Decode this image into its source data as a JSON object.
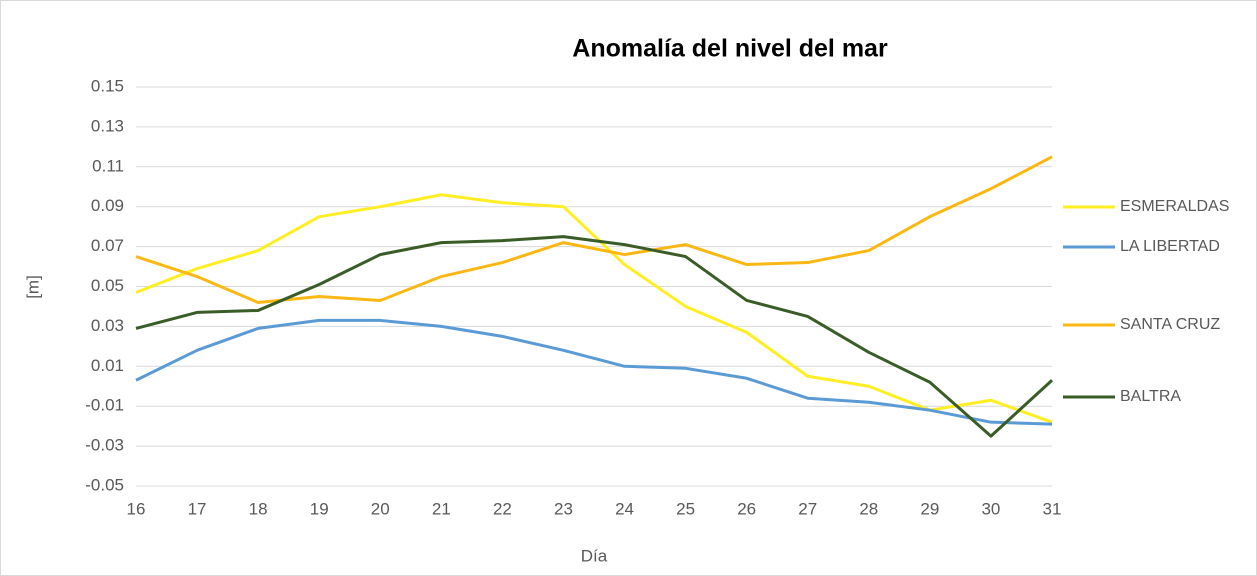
{
  "chart_data": {
    "type": "line",
    "title": "Anomalía del nivel del mar",
    "x_label": "Día",
    "y_label": "[m]",
    "x": [
      16,
      17,
      18,
      19,
      20,
      21,
      22,
      23,
      24,
      25,
      26,
      27,
      28,
      29,
      30,
      31
    ],
    "xlim": [
      16,
      31
    ],
    "xticks": [
      16,
      17,
      18,
      19,
      20,
      21,
      22,
      23,
      24,
      25,
      26,
      27,
      28,
      29,
      30,
      31
    ],
    "ylim": [
      -0.05,
      0.15
    ],
    "yticks": [
      -0.05,
      -0.03,
      -0.01,
      0.01,
      0.03,
      0.05,
      0.07,
      0.09,
      0.11,
      0.13,
      0.15
    ],
    "grid": true,
    "legend": "right",
    "series": [
      {
        "name": "ESMERALDAS",
        "color": "#ffee22",
        "values": [
          0.047,
          0.059,
          0.068,
          0.085,
          0.09,
          0.096,
          0.092,
          0.09,
          0.061,
          0.04,
          0.027,
          0.005,
          0.0,
          -0.012,
          -0.007,
          -0.018
        ]
      },
      {
        "name": "LA LIBERTAD",
        "color": "#5b9bd5",
        "values": [
          0.003,
          0.018,
          0.029,
          0.033,
          0.033,
          0.03,
          0.025,
          0.018,
          0.01,
          0.009,
          0.004,
          -0.006,
          -0.008,
          -0.012,
          -0.018,
          -0.019
        ]
      },
      {
        "name": "SANTA CRUZ",
        "color": "#fbb814",
        "values": [
          0.065,
          0.055,
          0.042,
          0.045,
          0.043,
          0.055,
          0.062,
          0.072,
          0.066,
          0.071,
          0.061,
          0.062,
          0.068,
          0.085,
          0.099,
          0.115
        ]
      },
      {
        "name": "BALTRA",
        "color": "#3a5d27",
        "values": [
          0.029,
          0.037,
          0.038,
          0.051,
          0.066,
          0.072,
          0.073,
          0.075,
          0.071,
          0.065,
          0.043,
          0.035,
          0.017,
          0.002,
          -0.025,
          0.003
        ]
      }
    ]
  }
}
